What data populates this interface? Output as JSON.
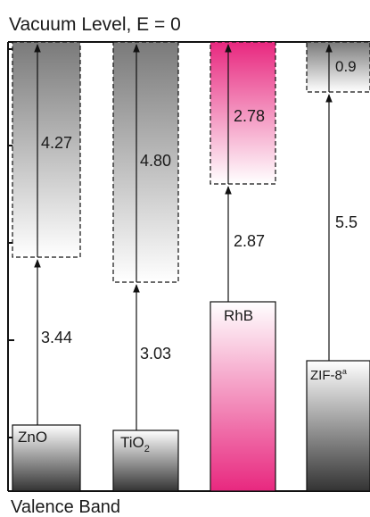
{
  "title": "Vacuum Level, E = 0",
  "footer": "Valence Band",
  "materials": [
    {
      "id": "zno",
      "label": "ZnO",
      "label_sub": "",
      "label_sup": "",
      "band_gap": "3.44",
      "electron_affinity": "4.27",
      "fill": "gray"
    },
    {
      "id": "tio2",
      "label": "TiO",
      "label_sub": "2",
      "label_sup": "",
      "band_gap": "3.03",
      "electron_affinity": "4.80",
      "fill": "gray"
    },
    {
      "id": "rhb",
      "label": "RhB",
      "label_sub": "",
      "label_sup": "",
      "band_gap": "2.87",
      "electron_affinity": "2.78",
      "fill": "pink"
    },
    {
      "id": "zif8",
      "label": "ZIF-8",
      "label_sub": "",
      "label_sup": "a",
      "band_gap": "5.5",
      "electron_affinity": "0.9",
      "fill": "gray"
    }
  ],
  "colors": {
    "gray_dark": "#3c3c3c",
    "gray_light": "#f4f4f4",
    "pink_dark": "#e8287f",
    "pink_light": "#fbe3ef",
    "line": "#111111"
  }
}
